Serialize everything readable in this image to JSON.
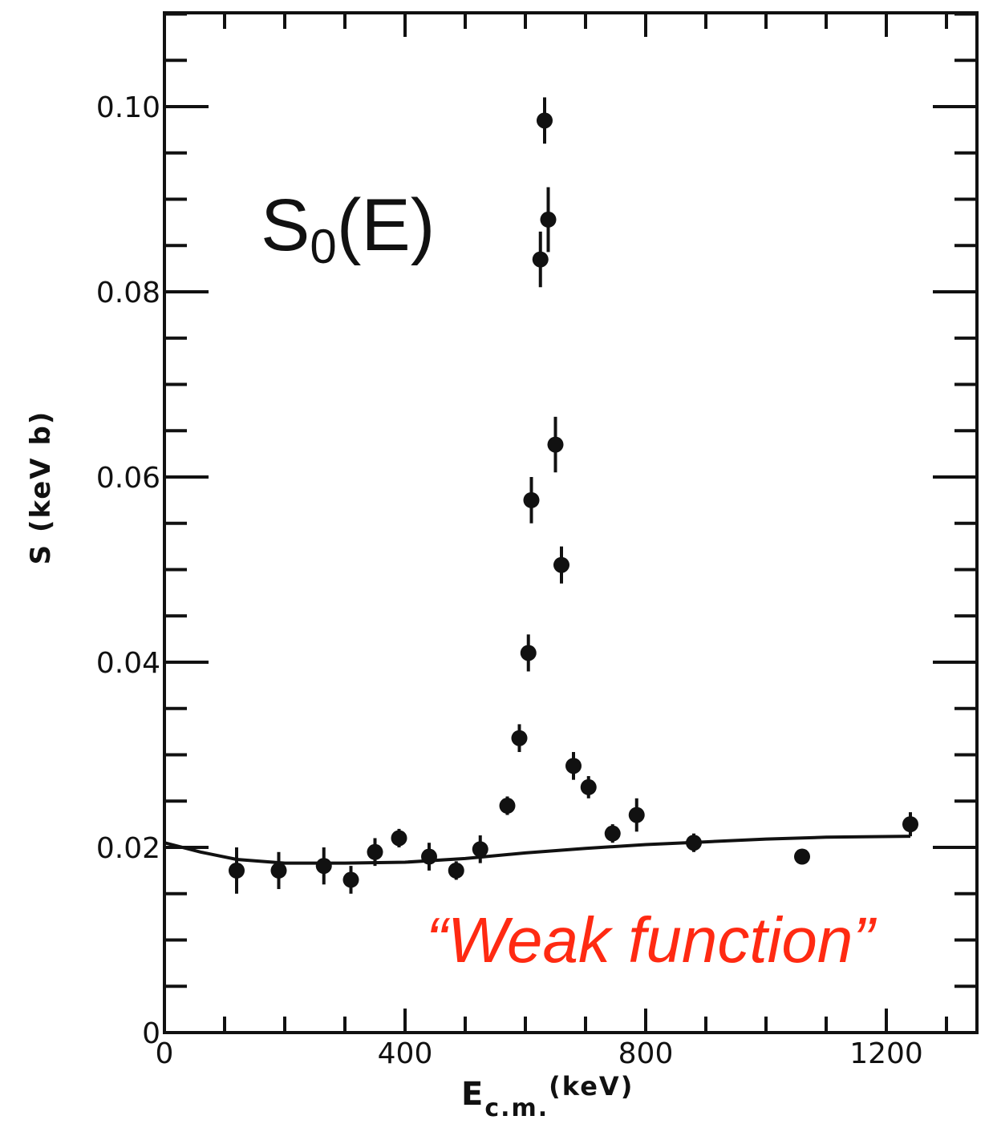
{
  "chart_data": {
    "type": "scatter",
    "xlabel_main": "E",
    "xlabel_sub": "c.m.",
    "xlabel_unit": "(keV)",
    "ylabel": "S (keV  b)",
    "xlim": [
      0,
      1350
    ],
    "ylim": [
      0,
      0.11
    ],
    "xticks": [
      0,
      400,
      800,
      1200
    ],
    "xtick_labels": [
      "0",
      "400",
      "800",
      "1200"
    ],
    "yticks": [
      0,
      0.02,
      0.04,
      0.06,
      0.08,
      0.1
    ],
    "ytick_labels": [
      "0",
      "0.02",
      "0.04",
      "0.06",
      "0.08",
      "0.10"
    ],
    "grid": false,
    "annotations": {
      "main": "S",
      "main_sub": "0",
      "main_rest": "(E)",
      "red": "“Weak function”"
    },
    "series": [
      {
        "type": "scatter",
        "points": [
          {
            "x": 120,
            "y": 0.0175,
            "err": 0.0025
          },
          {
            "x": 190,
            "y": 0.0175,
            "err": 0.002
          },
          {
            "x": 265,
            "y": 0.018,
            "err": 0.002
          },
          {
            "x": 310,
            "y": 0.0165,
            "err": 0.0015
          },
          {
            "x": 350,
            "y": 0.0195,
            "err": 0.0015
          },
          {
            "x": 390,
            "y": 0.021,
            "err": 0.001
          },
          {
            "x": 440,
            "y": 0.019,
            "err": 0.0015
          },
          {
            "x": 485,
            "y": 0.0175,
            "err": 0.001
          },
          {
            "x": 525,
            "y": 0.0198,
            "err": 0.0015
          },
          {
            "x": 570,
            "y": 0.0245,
            "err": 0.001
          },
          {
            "x": 590,
            "y": 0.0318,
            "err": 0.0015
          },
          {
            "x": 605,
            "y": 0.041,
            "err": 0.002
          },
          {
            "x": 610,
            "y": 0.0575,
            "err": 0.0025
          },
          {
            "x": 625,
            "y": 0.0835,
            "err": 0.003
          },
          {
            "x": 632,
            "y": 0.0985,
            "err": 0.0025
          },
          {
            "x": 638,
            "y": 0.0878,
            "err": 0.0035
          },
          {
            "x": 650,
            "y": 0.0635,
            "err": 0.003
          },
          {
            "x": 660,
            "y": 0.0505,
            "err": 0.002
          },
          {
            "x": 680,
            "y": 0.0288,
            "err": 0.0015
          },
          {
            "x": 705,
            "y": 0.0265,
            "err": 0.0012
          },
          {
            "x": 745,
            "y": 0.0215,
            "err": 0.001
          },
          {
            "x": 785,
            "y": 0.0235,
            "err": 0.0018
          },
          {
            "x": 880,
            "y": 0.0205,
            "err": 0.001
          },
          {
            "x": 1060,
            "y": 0.019,
            "err": 0.0007
          },
          {
            "x": 1240,
            "y": 0.0225,
            "err": 0.0013
          }
        ]
      },
      {
        "type": "line",
        "x": [
          0,
          60,
          120,
          200,
          300,
          400,
          500,
          600,
          700,
          800,
          900,
          1000,
          1100,
          1240
        ],
        "y": [
          0.0205,
          0.0195,
          0.0187,
          0.0183,
          0.0183,
          0.0184,
          0.0188,
          0.0194,
          0.0199,
          0.0203,
          0.0206,
          0.0209,
          0.0211,
          0.0212
        ]
      }
    ]
  }
}
